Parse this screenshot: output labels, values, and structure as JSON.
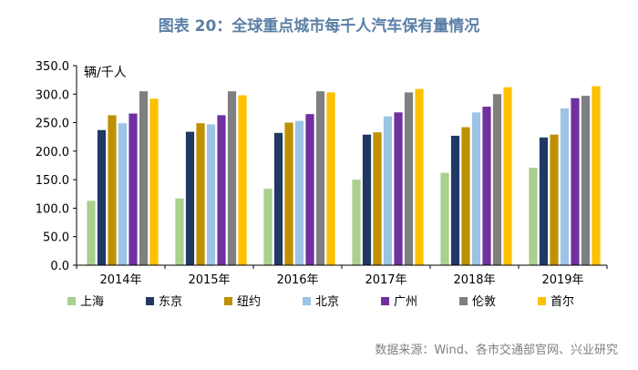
{
  "chart_data": {
    "type": "bar",
    "title": "图表 20：全球重点城市每千人汽车保有量情况",
    "ylabel": "辆/千人",
    "xlabel": "",
    "ylim": [
      0,
      350
    ],
    "yticks": [
      "0.0",
      "50.0",
      "100.0",
      "150.0",
      "200.0",
      "250.0",
      "300.0",
      "350.0"
    ],
    "ytick_values": [
      0,
      50,
      100,
      150,
      200,
      250,
      300,
      350
    ],
    "grid": false,
    "legend_position": "bottom",
    "categories": [
      "2014年",
      "2015年",
      "2016年",
      "2017年",
      "2018年",
      "2019年"
    ],
    "series": [
      {
        "name": "上海",
        "color": "#a9d08e",
        "values": [
          113,
          117,
          134,
          150,
          162,
          171
        ]
      },
      {
        "name": "东京",
        "color": "#1f3864",
        "values": [
          237,
          234,
          232,
          229,
          227,
          224
        ]
      },
      {
        "name": "纽约",
        "color": "#bf9000",
        "values": [
          263,
          249,
          250,
          233,
          242,
          229
        ]
      },
      {
        "name": "北京",
        "color": "#9dc3e6",
        "values": [
          249,
          247,
          253,
          261,
          268,
          275
        ]
      },
      {
        "name": "广州",
        "color": "#7030a0",
        "values": [
          266,
          263,
          265,
          268,
          278,
          293
        ]
      },
      {
        "name": "伦敦",
        "color": "#7f7f7f",
        "values": [
          305,
          305,
          305,
          303,
          300,
          297
        ]
      },
      {
        "name": "首尔",
        "color": "#ffc000",
        "values": [
          292,
          298,
          303,
          309,
          312,
          314
        ]
      }
    ],
    "source": "数据来源：Wind、各市交通部官网、兴业研究"
  },
  "colors": {
    "title": "#5b7fa6",
    "axis": "#000000",
    "source": "#7f7f7f"
  }
}
